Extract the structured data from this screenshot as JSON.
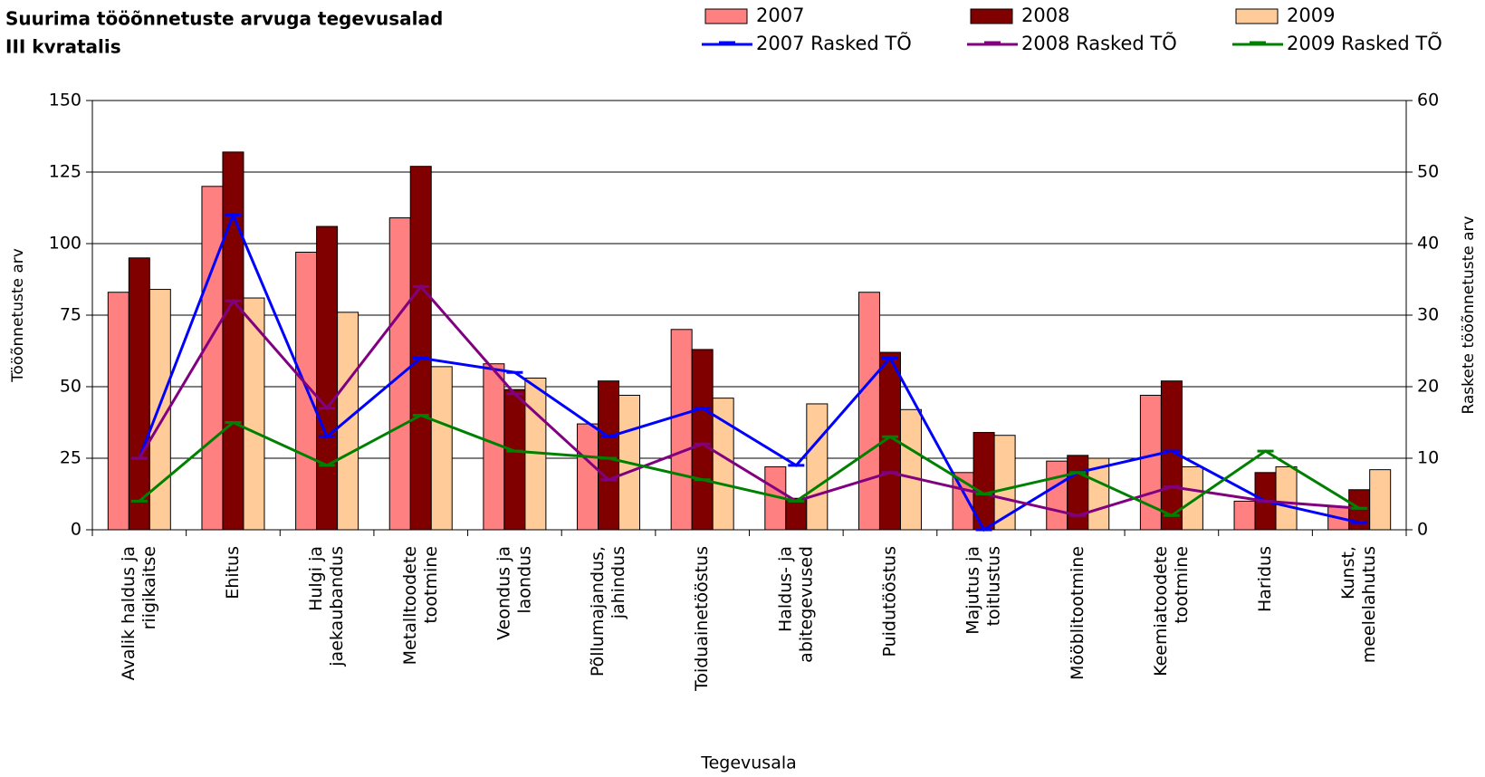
{
  "chart_data": {
    "type": "bar",
    "title": [
      "Suurima tööõnnetuste arvuga tegevusalad",
      "III kvratalis"
    ],
    "x_label": "Tegevusala",
    "y_label": "Tööõnnetuste arv",
    "y2_label": "Raskete tööõnnetuste arv",
    "categories": [
      [
        "Avalik haldus ja",
        "riigikaitse"
      ],
      [
        "Ehitus"
      ],
      [
        "Hulgi ja",
        "jaekaubandus"
      ],
      [
        "Metalltoodete",
        "tootmine"
      ],
      [
        "Veondus ja",
        "laondus"
      ],
      [
        "Põllumajandus,",
        "jahindus"
      ],
      [
        "Toiduainetööstus"
      ],
      [
        "Haldus- ja",
        "abitegevused"
      ],
      [
        "Puidutööstus"
      ],
      [
        "Majutus ja",
        "toitlustus"
      ],
      [
        "Mööblitootmine"
      ],
      [
        "Keemiatoodete",
        "tootmine"
      ],
      [
        "Haridus"
      ],
      [
        "Kunst,",
        "meelelahutus"
      ]
    ],
    "series": [
      {
        "name": "2007",
        "type": "bar",
        "color": "#ff8080",
        "values": [
          83,
          120,
          97,
          109,
          58,
          37,
          70,
          22,
          83,
          20,
          24,
          47,
          10,
          8
        ]
      },
      {
        "name": "2008",
        "type": "bar",
        "color": "#800000",
        "values": [
          95,
          132,
          106,
          127,
          49,
          52,
          63,
          11,
          62,
          34,
          26,
          52,
          20,
          14
        ]
      },
      {
        "name": "2009",
        "type": "bar",
        "color": "#ffcc99",
        "values": [
          84,
          81,
          76,
          57,
          53,
          47,
          46,
          44,
          42,
          33,
          25,
          22,
          22,
          21
        ]
      },
      {
        "name": "2007 Rasked TÕ",
        "type": "line",
        "axis": "y2",
        "color": "#0000ff",
        "values": [
          10,
          44,
          13,
          24,
          22,
          13,
          17,
          9,
          24,
          0,
          8,
          11,
          4,
          1
        ]
      },
      {
        "name": "2008 Rasked TÕ",
        "type": "line",
        "axis": "y2",
        "color": "#800080",
        "values": [
          10,
          32,
          17,
          34,
          19,
          7,
          12,
          4,
          8,
          5,
          2,
          6,
          4,
          3
        ]
      },
      {
        "name": "2009 Rasked TÕ",
        "type": "line",
        "axis": "y2",
        "color": "#008000",
        "values": [
          4,
          15,
          9,
          16,
          11,
          10,
          7,
          4,
          13,
          5,
          8,
          2,
          11,
          3
        ]
      }
    ],
    "ylim": [
      0,
      150
    ],
    "yticks": [
      0,
      25,
      50,
      75,
      100,
      125,
      150
    ],
    "y2lim": [
      0,
      60
    ],
    "y2ticks": [
      0,
      10,
      20,
      30,
      40,
      50,
      60
    ],
    "grid": true,
    "legend": "top-right"
  }
}
